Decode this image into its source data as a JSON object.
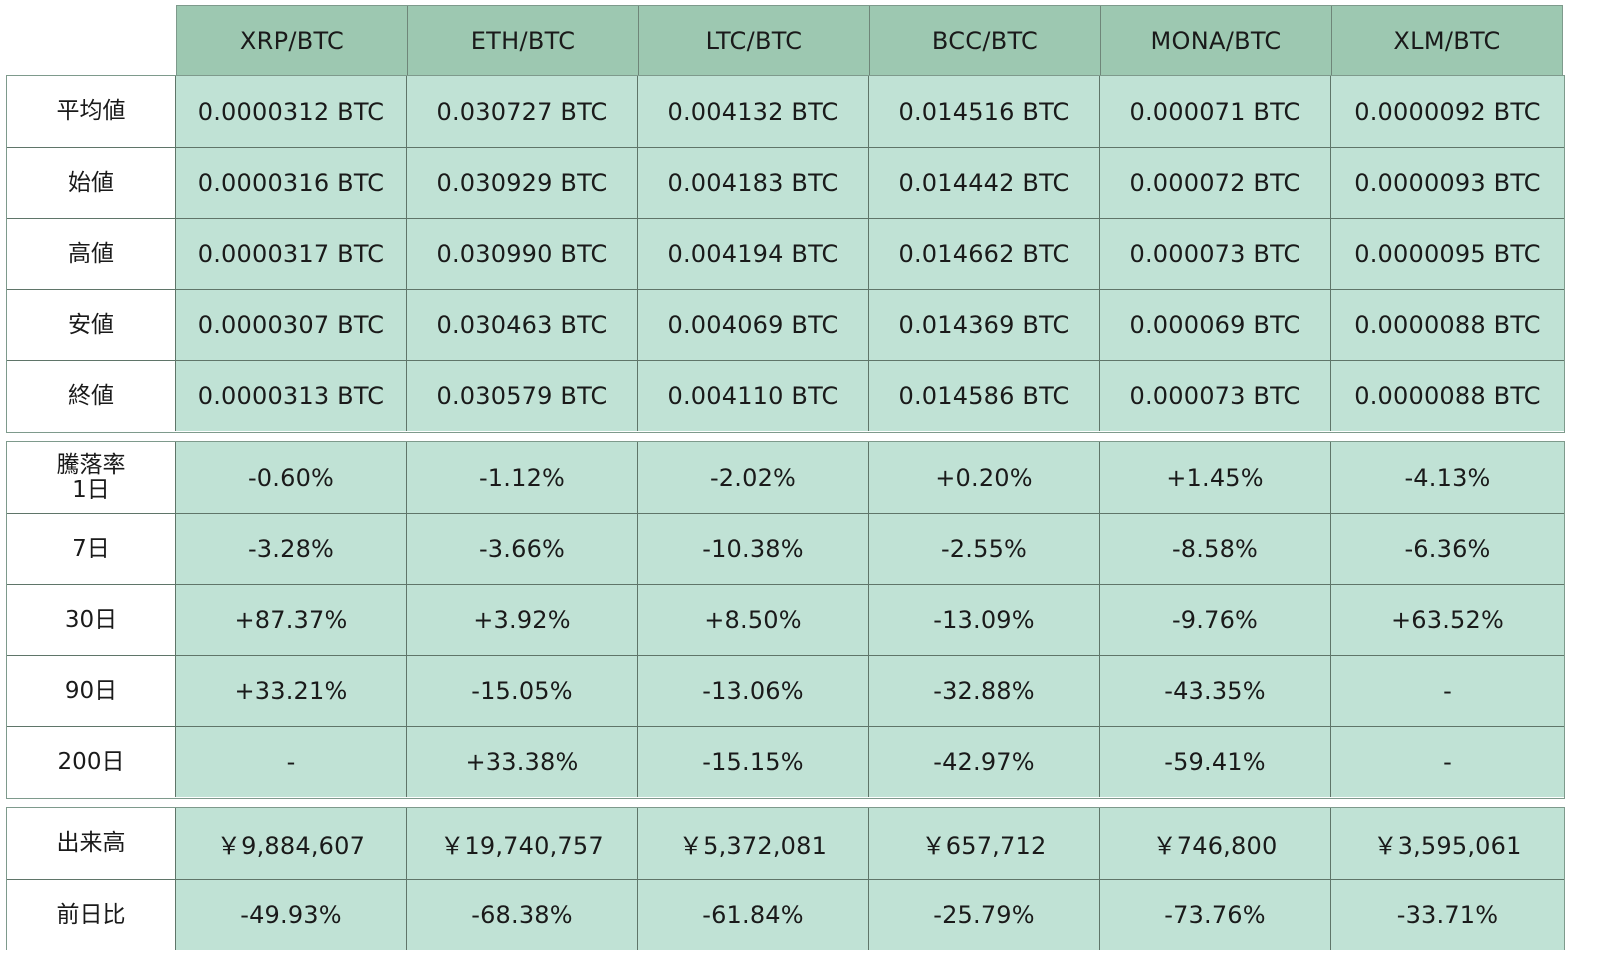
{
  "columns": [
    "XRP/BTC",
    "ETH/BTC",
    "LTC/BTC",
    "BCC/BTC",
    "MONA/BTC",
    "XLM/BTC"
  ],
  "price_section": {
    "rows": [
      {
        "label": "平均値",
        "values": [
          "0.0000312 BTC",
          "0.030727 BTC",
          "0.004132 BTC",
          "0.014516 BTC",
          "0.000071 BTC",
          "0.0000092 BTC"
        ]
      },
      {
        "label": "始値",
        "values": [
          "0.0000316 BTC",
          "0.030929 BTC",
          "0.004183 BTC",
          "0.014442 BTC",
          "0.000072 BTC",
          "0.0000093 BTC"
        ]
      },
      {
        "label": "高値",
        "values": [
          "0.0000317 BTC",
          "0.030990 BTC",
          "0.004194 BTC",
          "0.014662 BTC",
          "0.000073 BTC",
          "0.0000095 BTC"
        ]
      },
      {
        "label": "安値",
        "values": [
          "0.0000307 BTC",
          "0.030463 BTC",
          "0.004069 BTC",
          "0.014369 BTC",
          "0.000069 BTC",
          "0.0000088 BTC"
        ]
      },
      {
        "label": "終値",
        "values": [
          "0.0000313 BTC",
          "0.030579 BTC",
          "0.004110 BTC",
          "0.014586 BTC",
          "0.000073 BTC",
          "0.0000088 BTC"
        ]
      }
    ]
  },
  "change_section": {
    "title": "騰落率",
    "rows": [
      {
        "label": "1日",
        "values": [
          "-0.60%",
          "-1.12%",
          "-2.02%",
          "+0.20%",
          "+1.45%",
          "-4.13%"
        ]
      },
      {
        "label": "7日",
        "values": [
          "-3.28%",
          "-3.66%",
          "-10.38%",
          "-2.55%",
          "-8.58%",
          "-6.36%"
        ]
      },
      {
        "label": "30日",
        "values": [
          "+87.37%",
          "+3.92%",
          "+8.50%",
          "-13.09%",
          "-9.76%",
          "+63.52%"
        ]
      },
      {
        "label": "90日",
        "values": [
          "+33.21%",
          "-15.05%",
          "-13.06%",
          "-32.88%",
          "-43.35%",
          "-"
        ]
      },
      {
        "label": "200日",
        "values": [
          "-",
          "+33.38%",
          "-15.15%",
          "-42.97%",
          "-59.41%",
          "-"
        ]
      }
    ]
  },
  "volume_section": {
    "rows": [
      {
        "label": "出来高",
        "values": [
          "￥9,884,607",
          "￥19,740,757",
          "￥5,372,081",
          "￥657,712",
          "￥746,800",
          "￥3,595,061"
        ]
      },
      {
        "label": "前日比",
        "values": [
          "-49.93%",
          "-68.38%",
          "-61.84%",
          "-25.79%",
          "-73.76%",
          "-33.71%"
        ]
      }
    ]
  },
  "colors": {
    "header_bg": "#9dc8b1",
    "cell_bg": "#c0e2d5",
    "label_bg": "#ffffff",
    "border": "#5f7569"
  }
}
